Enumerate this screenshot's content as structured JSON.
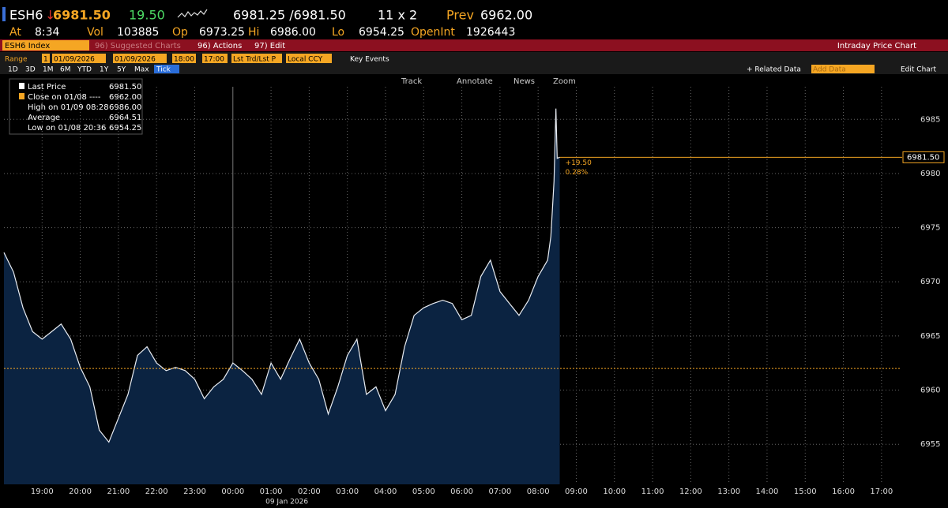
{
  "header": {
    "ticker": "ESH6",
    "last": "6981.50",
    "change": "19.50",
    "bid_ask": "6981.25 /6981.50",
    "size": "11 x 2",
    "prev_label": "Prev",
    "prev": "6962.00",
    "stats": [
      {
        "label": "At",
        "value": "8:34"
      },
      {
        "label": "Vol",
        "value": "103885"
      },
      {
        "label": "Op",
        "value": "6973.25"
      },
      {
        "label": "Hi",
        "value": "6986.00"
      },
      {
        "label": "Lo",
        "value": "6954.25"
      },
      {
        "label": "OpenInt",
        "value": "1926443"
      }
    ]
  },
  "toolbar": {
    "security": "ESH6 Index",
    "suggested": "96) Suggested Charts",
    "actions": "96) Actions",
    "edit": "97) Edit",
    "title": "Intraday Price Chart"
  },
  "settings": {
    "range_label": "Range",
    "range_n": "1",
    "start_date": "01/09/2026",
    "end_date": "01/09/2026",
    "start_time": "18:00",
    "end_time": "17:00",
    "field": "Lst Trd/Lst P",
    "currency": "Local CCY",
    "events": "Key Events"
  },
  "periods": [
    "1D",
    "3D",
    "1M",
    "6M",
    "YTD",
    "1Y",
    "5Y",
    "Max",
    "Tick"
  ],
  "right_tools": {
    "related": "+ Related Data",
    "add": "Add Data",
    "edit_chart": "Edit Chart"
  },
  "chart_tools": [
    "Track",
    "Annotate",
    "News",
    "Zoom"
  ],
  "legend_box": [
    {
      "label": "Last Price",
      "value": "6981.50"
    },
    {
      "label": "Close on 01/08 ----",
      "value": "6962.00"
    },
    {
      "label": "High on 01/09 08:28",
      "value": "6986.00"
    },
    {
      "label": "Average",
      "value": "6964.51"
    },
    {
      "label": "Low on 01/08 20:36",
      "value": "6954.25"
    }
  ],
  "chart_data": {
    "type": "area",
    "xlabel": "09 Jan 2026",
    "x": [
      "18:00",
      "18:15",
      "18:30",
      "18:45",
      "19:00",
      "19:15",
      "19:30",
      "19:45",
      "20:00",
      "20:15",
      "20:30",
      "20:45",
      "21:00",
      "21:15",
      "21:30",
      "21:45",
      "22:00",
      "22:15",
      "22:30",
      "22:45",
      "23:00",
      "23:15",
      "23:30",
      "23:45",
      "00:00",
      "00:15",
      "00:30",
      "00:45",
      "01:00",
      "01:15",
      "01:30",
      "01:45",
      "02:00",
      "02:15",
      "02:30",
      "02:45",
      "03:00",
      "03:15",
      "03:30",
      "03:45",
      "04:00",
      "04:15",
      "04:30",
      "04:45",
      "05:00",
      "05:15",
      "05:30",
      "05:45",
      "06:00",
      "06:15",
      "06:30",
      "06:45",
      "07:00",
      "07:15",
      "07:30",
      "07:45",
      "08:00",
      "08:15",
      "08:20",
      "08:25",
      "08:28",
      "08:30",
      "08:34"
    ],
    "series": [
      {
        "name": "Last Price",
        "color": "#e8ecf2",
        "fill": "#0b2341",
        "values": [
          6972.7,
          6970.9,
          6967.6,
          6965.4,
          6964.7,
          6965.4,
          6966.1,
          6964.7,
          6962.1,
          6960.3,
          6956.3,
          6955.2,
          6957.4,
          6959.6,
          6963.2,
          6964.0,
          6962.5,
          6961.8,
          6962.1,
          6961.8,
          6961.0,
          6959.2,
          6960.3,
          6961.0,
          6962.5,
          6961.8,
          6961.0,
          6959.6,
          6962.5,
          6961.0,
          6962.9,
          6964.7,
          6962.5,
          6961.0,
          6957.8,
          6960.3,
          6963.2,
          6964.7,
          6959.6,
          6960.3,
          6958.1,
          6959.6,
          6964.0,
          6966.9,
          6967.6,
          6968.0,
          6968.3,
          6968.0,
          6966.5,
          6966.9,
          6970.5,
          6972.0,
          6969.1,
          6968.0,
          6966.9,
          6968.3,
          6970.5,
          6972.0,
          6974.2,
          6979.3,
          6986.0,
          6981.4,
          6981.5
        ]
      }
    ],
    "xlim": [
      "18:00",
      "17:30"
    ],
    "xticks": [
      "19:00",
      "20:00",
      "21:00",
      "22:00",
      "23:00",
      "00:00",
      "01:00",
      "02:00",
      "03:00",
      "04:00",
      "05:00",
      "06:00",
      "07:00",
      "08:00",
      "09:00",
      "10:00",
      "11:00",
      "12:00",
      "13:00",
      "14:00",
      "15:00",
      "16:00",
      "17:00"
    ],
    "ylim": [
      6951.3,
      6989.1
    ],
    "yticks": [
      6955,
      6960,
      6965,
      6970,
      6975,
      6980,
      6985
    ],
    "grid": true,
    "prev_close": 6962,
    "prev_close_color": "#f5a623",
    "last_value": 6981.5,
    "last_label": "6981.50",
    "last_color": "#f5a623",
    "annotation_change": "+19.50",
    "annotation_pct": "0.28%"
  }
}
